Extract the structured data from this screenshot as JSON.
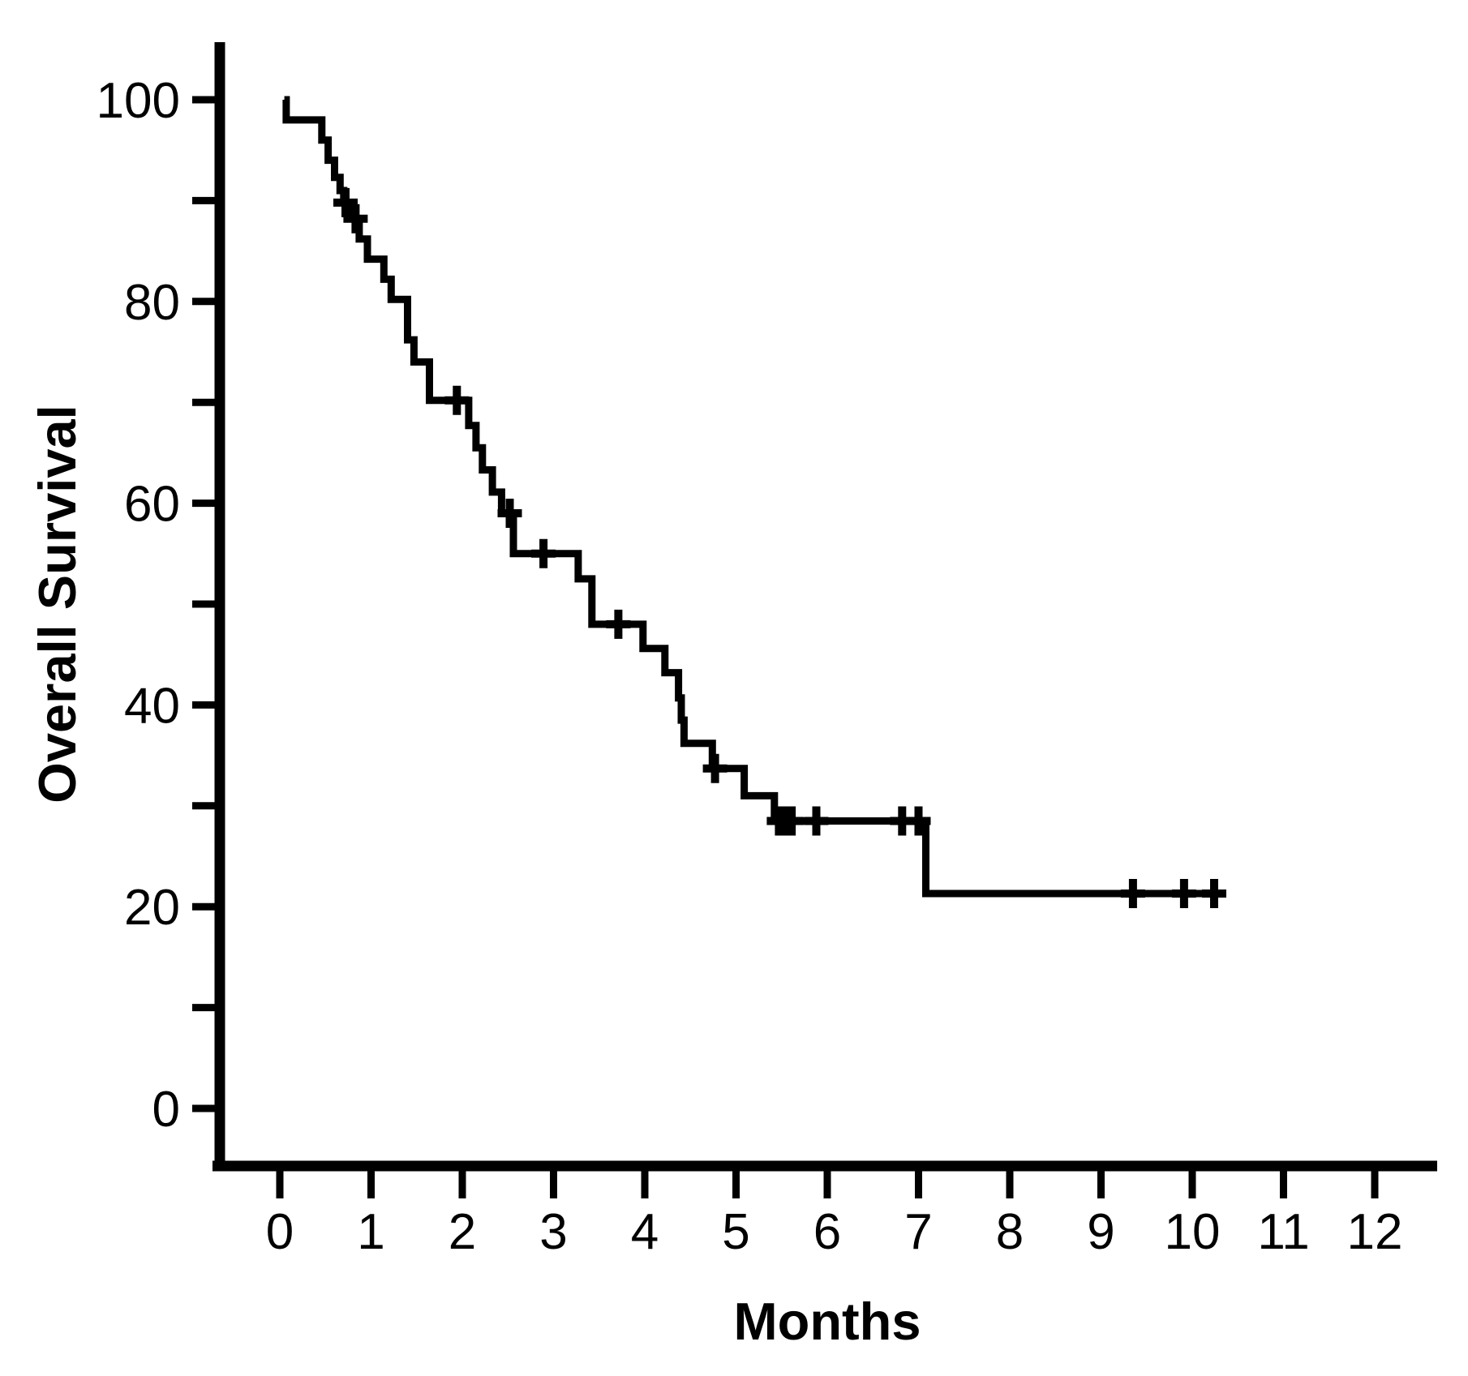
{
  "figure": {
    "kind": "kaplan-meier-survival-plot",
    "background": "#ffffff",
    "line_color": "#000000"
  },
  "chart_data": {
    "type": "line",
    "subtype": "kaplan-meier-step",
    "title": "",
    "xlabel": "Months",
    "ylabel": "Overall Survival",
    "xlim": [
      0,
      12.7
    ],
    "ylim": [
      0,
      105
    ],
    "grid": false,
    "legend": "none",
    "x_ticks": [
      0,
      1,
      2,
      3,
      4,
      5,
      6,
      7,
      8,
      9,
      10,
      11,
      12
    ],
    "x_tick_labels": [
      "0",
      "1",
      "2",
      "3",
      "4",
      "5",
      "6",
      "7",
      "8",
      "9",
      "10",
      "11",
      "12"
    ],
    "y_ticks": [
      0,
      10,
      20,
      30,
      40,
      50,
      60,
      70,
      80,
      90,
      100
    ],
    "y_labeled_ticks": [
      0,
      20,
      40,
      60,
      80,
      100
    ],
    "y_tick_labels": [
      "0",
      "20",
      "40",
      "60",
      "80",
      "100"
    ],
    "km_curve": {
      "start": [
        0.05,
        100
      ],
      "events": [
        [
          0.07,
          98.0
        ],
        [
          0.46,
          96.0
        ],
        [
          0.53,
          94.0
        ],
        [
          0.6,
          92.3
        ],
        [
          0.66,
          91.0
        ],
        [
          0.7,
          89.8
        ],
        [
          0.78,
          88.2
        ],
        [
          0.87,
          86.2
        ],
        [
          0.96,
          84.2
        ],
        [
          1.14,
          82.2
        ],
        [
          1.22,
          80.2
        ],
        [
          1.4,
          76.2
        ],
        [
          1.47,
          74.0
        ],
        [
          1.64,
          70.2
        ],
        [
          2.07,
          67.7
        ],
        [
          2.15,
          65.5
        ],
        [
          2.22,
          63.3
        ],
        [
          2.33,
          61.1
        ],
        [
          2.43,
          59.0
        ],
        [
          2.56,
          55.0
        ],
        [
          3.27,
          52.5
        ],
        [
          3.42,
          48.0
        ],
        [
          3.98,
          45.6
        ],
        [
          4.22,
          43.2
        ],
        [
          4.37,
          40.7
        ],
        [
          4.4,
          38.5
        ],
        [
          4.43,
          36.2
        ],
        [
          4.74,
          33.7
        ],
        [
          5.09,
          31.0
        ],
        [
          5.42,
          28.5
        ],
        [
          7.08,
          21.3
        ]
      ],
      "end_time": 10.36
    },
    "censor_marks": [
      [
        0.72,
        89.8
      ],
      [
        0.83,
        88.2
      ],
      [
        1.94,
        70.2
      ],
      [
        2.52,
        59.0
      ],
      [
        2.89,
        55.0
      ],
      [
        3.71,
        48.0
      ],
      [
        4.77,
        33.7
      ],
      [
        5.47,
        28.5
      ],
      [
        5.54,
        28.5
      ],
      [
        5.61,
        28.5
      ],
      [
        5.88,
        28.5
      ],
      [
        6.82,
        28.5
      ],
      [
        7.0,
        28.5
      ],
      [
        9.35,
        21.3
      ],
      [
        9.91,
        21.3
      ],
      [
        10.24,
        21.3
      ]
    ]
  }
}
